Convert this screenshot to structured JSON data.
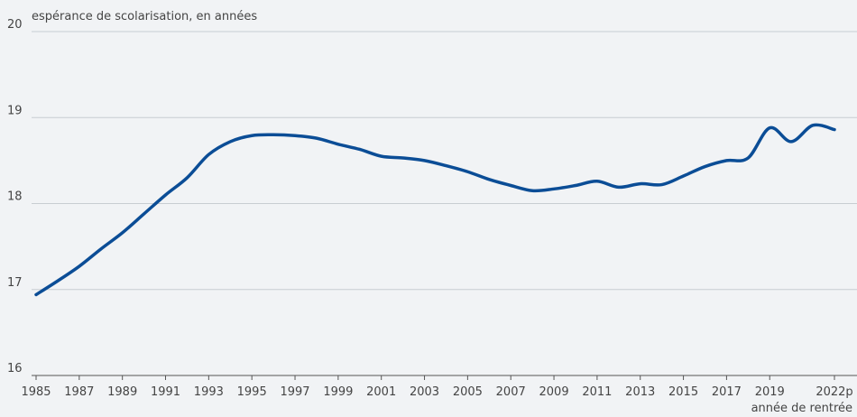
{
  "chart_data": {
    "type": "line",
    "y_label": "espérance de scolarisation, en années",
    "x_label": "année de rentrée",
    "x": [
      1985,
      1986,
      1987,
      1988,
      1989,
      1990,
      1991,
      1992,
      1993,
      1994,
      1995,
      1996,
      1997,
      1998,
      1999,
      2000,
      2001,
      2002,
      2003,
      2004,
      2005,
      2006,
      2007,
      2008,
      2009,
      2010,
      2011,
      2012,
      2013,
      2014,
      2015,
      2016,
      2017,
      2018,
      2019,
      2020,
      2021,
      2022
    ],
    "series": [
      {
        "color": "#0b4d96",
        "values": [
          16.94,
          17.1,
          17.27,
          17.47,
          17.66,
          17.88,
          18.1,
          18.3,
          18.57,
          18.72,
          18.79,
          18.8,
          18.79,
          18.76,
          18.69,
          18.63,
          18.55,
          18.53,
          18.5,
          18.44,
          18.37,
          18.28,
          18.21,
          18.15,
          18.17,
          18.21,
          18.26,
          18.19,
          18.23,
          18.22,
          18.32,
          18.43,
          18.5,
          18.53,
          18.88,
          18.72,
          18.91,
          18.86
        ]
      }
    ],
    "xlim": [
      1985,
      2022
    ],
    "ylim": [
      16,
      20
    ],
    "xticks": [
      1985,
      1987,
      1989,
      1991,
      1993,
      1995,
      1997,
      1999,
      2001,
      2003,
      2005,
      2007,
      2009,
      2011,
      2013,
      2015,
      2017,
      2019,
      {
        "value": 2022,
        "label": "2022p"
      }
    ],
    "yticks": [
      16,
      17,
      18,
      19,
      20
    ],
    "grid": true
  }
}
